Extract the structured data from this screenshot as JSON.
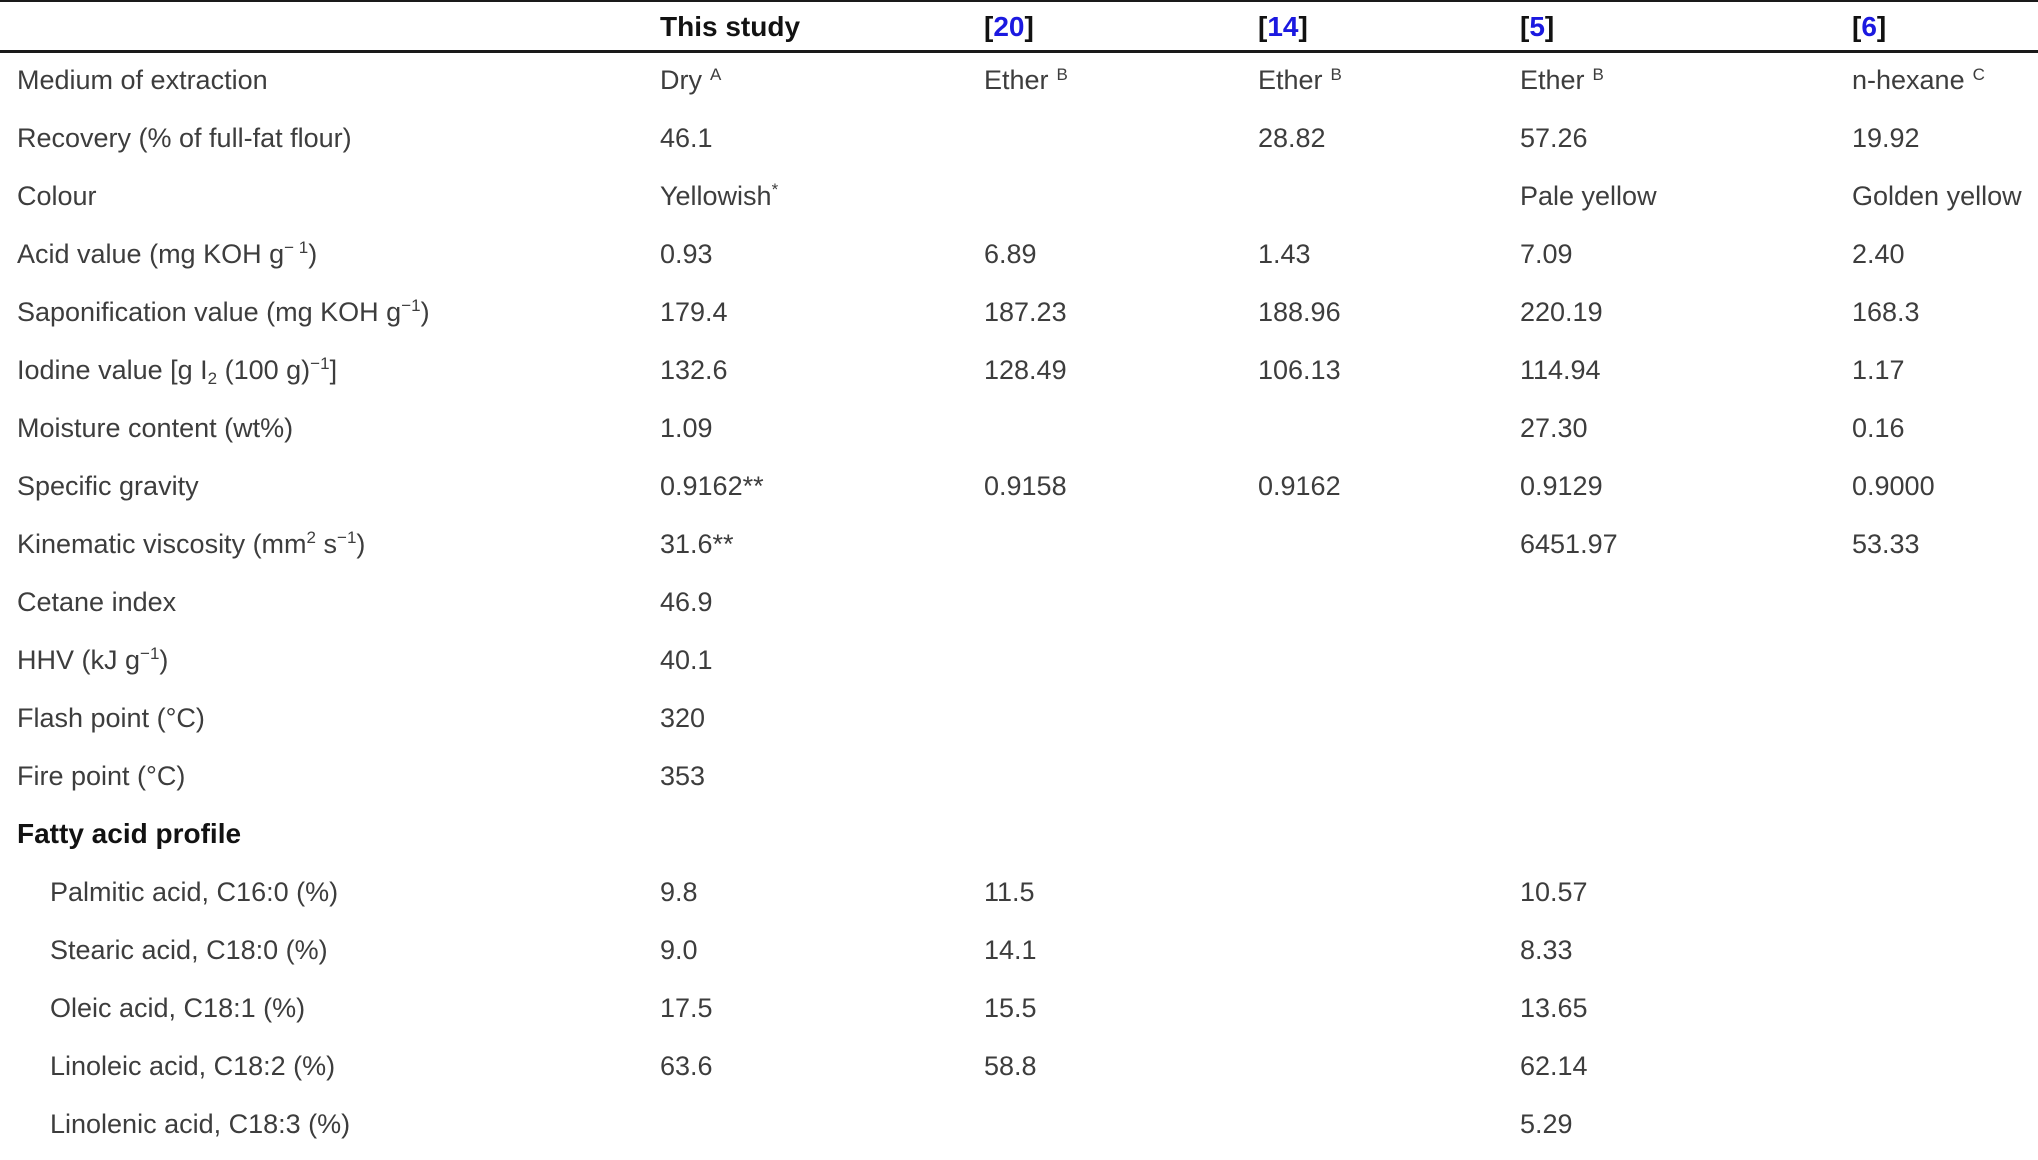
{
  "colors": {
    "reference_link_blue": "#1b19e0",
    "body_text": "#3d3d3d",
    "heading_text": "#121212",
    "rule": "#1a1a1a"
  },
  "table": {
    "headers": [
      {
        "key": "parameter",
        "type": "empty",
        "label": ""
      },
      {
        "key": "this_study",
        "type": "plain",
        "label": "This study"
      },
      {
        "key": "ref_20",
        "type": "ref",
        "number": "20"
      },
      {
        "key": "ref_14",
        "type": "ref",
        "number": "14"
      },
      {
        "key": "ref_5",
        "type": "ref",
        "number": "5"
      },
      {
        "key": "ref_6",
        "type": "ref",
        "number": "6"
      }
    ],
    "rows": [
      {
        "label": [
          {
            "t": "Medium of extraction"
          }
        ],
        "cells": [
          {
            "t": "Dry",
            "sup": "A",
            "gap": true
          },
          {
            "t": "Ether",
            "sup": "B",
            "gap": true
          },
          {
            "t": "Ether",
            "sup": "B",
            "gap": true
          },
          {
            "t": "Ether",
            "sup": "B",
            "gap": true
          },
          {
            "t": "n-hexane",
            "sup": "C",
            "gap": true
          }
        ]
      },
      {
        "label": [
          {
            "t": "Recovery (% of full-fat flour)"
          }
        ],
        "cells": [
          "46.1",
          "",
          "28.82",
          "57.26",
          "19.92"
        ]
      },
      {
        "label": [
          {
            "t": "Colour"
          }
        ],
        "cells": [
          {
            "t": "Yellowish",
            "sup": "*",
            "gap": false
          },
          "",
          "",
          "Pale yellow",
          "Golden yellow"
        ]
      },
      {
        "label": [
          {
            "t": "Acid value (mg KOH g"
          },
          {
            "t": "− 1",
            "s": "sup"
          },
          {
            "t": ")"
          }
        ],
        "cells": [
          "0.93",
          "6.89",
          "1.43",
          "7.09",
          "2.40"
        ]
      },
      {
        "label": [
          {
            "t": "Saponification value (mg KOH g"
          },
          {
            "t": "−1",
            "s": "sup"
          },
          {
            "t": ")"
          }
        ],
        "cells": [
          "179.4",
          "187.23",
          "188.96",
          "220.19",
          "168.3"
        ]
      },
      {
        "label": [
          {
            "t": "Iodine value [g I"
          },
          {
            "t": "2",
            "s": "sub"
          },
          {
            "t": " (100 g)"
          },
          {
            "t": "−1",
            "s": "sup"
          },
          {
            "t": "]"
          }
        ],
        "cells": [
          "132.6",
          "128.49",
          "106.13",
          "114.94",
          "1.17"
        ]
      },
      {
        "label": [
          {
            "t": "Moisture content (wt%)"
          }
        ],
        "cells": [
          "1.09",
          "",
          "",
          "27.30",
          "0.16"
        ]
      },
      {
        "label": [
          {
            "t": "Specific gravity"
          }
        ],
        "cells": [
          "0.9162**",
          "0.9158",
          "0.9162",
          "0.9129",
          "0.9000"
        ]
      },
      {
        "label": [
          {
            "t": "Kinematic viscosity (mm"
          },
          {
            "t": "2",
            "s": "sup"
          },
          {
            "t": " s"
          },
          {
            "t": "−1",
            "s": "sup"
          },
          {
            "t": ")"
          }
        ],
        "cells": [
          "31.6**",
          "",
          "",
          "6451.97",
          "53.33"
        ]
      },
      {
        "label": [
          {
            "t": "Cetane index"
          }
        ],
        "cells": [
          "46.9",
          "",
          "",
          "",
          ""
        ]
      },
      {
        "label": [
          {
            "t": "HHV (kJ g"
          },
          {
            "t": "−1",
            "s": "sup"
          },
          {
            "t": ")"
          }
        ],
        "cells": [
          "40.1",
          "",
          "",
          "",
          ""
        ]
      },
      {
        "label": [
          {
            "t": "Flash point (°C)"
          }
        ],
        "cells": [
          "320",
          "",
          "",
          "",
          ""
        ]
      },
      {
        "label": [
          {
            "t": "Fire point (°C)"
          }
        ],
        "cells": [
          "353",
          "",
          "",
          "",
          ""
        ]
      },
      {
        "label": [
          {
            "t": "Fatty acid profile"
          }
        ],
        "section": true,
        "cells": [
          "",
          "",
          "",
          "",
          ""
        ]
      },
      {
        "label": [
          {
            "t": "Palmitic acid, C16:0 (%)"
          }
        ],
        "indent": true,
        "cells": [
          "9.8",
          "11.5",
          "",
          "10.57",
          ""
        ]
      },
      {
        "label": [
          {
            "t": "Stearic acid, C18:0 (%)"
          }
        ],
        "indent": true,
        "cells": [
          "9.0",
          "14.1",
          "",
          "8.33",
          ""
        ]
      },
      {
        "label": [
          {
            "t": "Oleic acid, C18:1 (%)"
          }
        ],
        "indent": true,
        "cells": [
          "17.5",
          "15.5",
          "",
          "13.65",
          ""
        ]
      },
      {
        "label": [
          {
            "t": "Linoleic acid, C18:2 (%)"
          }
        ],
        "indent": true,
        "cells": [
          "63.6",
          "58.8",
          "",
          "62.14",
          ""
        ]
      },
      {
        "label": [
          {
            "t": "Linolenic acid, C18:3 (%)"
          }
        ],
        "indent": true,
        "cells": [
          "",
          "",
          "",
          "5.29",
          ""
        ]
      }
    ]
  }
}
